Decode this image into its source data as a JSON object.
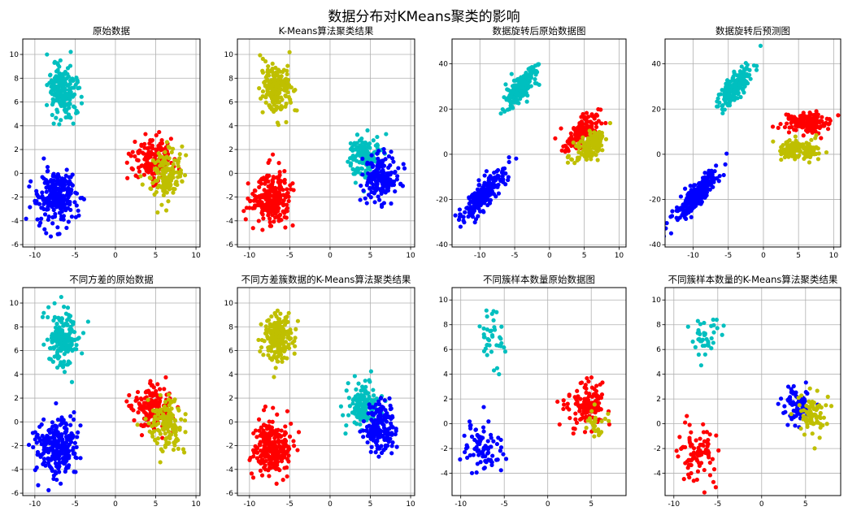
{
  "figure": {
    "suptitle": "数据分布对KMeans聚类的影响"
  },
  "colors": {
    "b": "#0000ff",
    "r": "#ff0000",
    "c": "#00bfbf",
    "y": "#bfbf00"
  },
  "chart_data": [
    {
      "type": "scatter",
      "title": "原始数据",
      "xlim": [
        -11.5,
        10.5
      ],
      "ylim": [
        -6.2,
        11.3
      ],
      "xticks": [
        -10,
        -5,
        0,
        5,
        10
      ],
      "yticks": [
        -6,
        -4,
        -2,
        0,
        2,
        4,
        6,
        8,
        10
      ],
      "grid": true,
      "clusters": [
        {
          "color": "c",
          "cx": -6.6,
          "cy": 7.0,
          "sx": 0.9,
          "sy": 1.1,
          "n": 200
        },
        {
          "color": "b",
          "cx": -7.3,
          "cy": -2.1,
          "sx": 1.2,
          "sy": 1.1,
          "n": 250
        },
        {
          "color": "r",
          "cx": 4.6,
          "cy": 1.2,
          "sx": 1.2,
          "sy": 0.9,
          "n": 160
        },
        {
          "color": "y",
          "cx": 6.2,
          "cy": -0.2,
          "sx": 1.0,
          "sy": 1.1,
          "n": 140
        }
      ]
    },
    {
      "type": "scatter",
      "title": "K-Means算法聚类结果",
      "xlim": [
        -11.5,
        10.5
      ],
      "ylim": [
        -6.2,
        11.3
      ],
      "xticks": [
        -10,
        -5,
        0,
        5,
        10
      ],
      "yticks": [
        -6,
        -4,
        -2,
        0,
        2,
        4,
        6,
        8,
        10
      ],
      "grid": true,
      "clusters": [
        {
          "color": "y",
          "cx": -6.6,
          "cy": 7.0,
          "sx": 0.9,
          "sy": 1.1,
          "n": 200
        },
        {
          "color": "r",
          "cx": -7.3,
          "cy": -2.1,
          "sx": 1.2,
          "sy": 1.1,
          "n": 250
        },
        {
          "color": "c",
          "cx": 4.2,
          "cy": 1.4,
          "sx": 1.0,
          "sy": 0.9,
          "n": 160
        },
        {
          "color": "b",
          "cx": 6.3,
          "cy": -0.4,
          "sx": 1.0,
          "sy": 1.0,
          "n": 160
        }
      ]
    },
    {
      "type": "scatter",
      "title": "数据旋转后原始数据图",
      "xlim": [
        -14,
        11
      ],
      "ylim": [
        -41,
        51
      ],
      "xticks": [
        -10,
        -5,
        0,
        5,
        10
      ],
      "yticks": [
        -40,
        -20,
        0,
        20,
        40
      ],
      "grid": true,
      "clusters": [
        {
          "color": "c",
          "cx": -4.0,
          "cy": 30,
          "sx": 1.2,
          "sy": 2.8,
          "slope": 3.0,
          "n": 200
        },
        {
          "color": "b",
          "cx": -9.5,
          "cy": -18,
          "sx": 1.5,
          "sy": 2.8,
          "slope": 3.0,
          "n": 250
        },
        {
          "color": "r",
          "cx": 4.8,
          "cy": 10,
          "sx": 1.3,
          "sy": 3.0,
          "slope": 1.8,
          "n": 160
        },
        {
          "color": "y",
          "cx": 6.0,
          "cy": 4,
          "sx": 1.1,
          "sy": 3.0,
          "slope": 1.8,
          "n": 140
        }
      ]
    },
    {
      "type": "scatter",
      "title": "数据旋转后预测图",
      "xlim": [
        -14,
        11
      ],
      "ylim": [
        -41,
        51
      ],
      "xticks": [
        -10,
        -5,
        0,
        5,
        10
      ],
      "yticks": [
        -40,
        -20,
        0,
        20,
        40
      ],
      "grid": true,
      "clusters": [
        {
          "color": "c",
          "cx": -4.0,
          "cy": 30,
          "sx": 1.2,
          "sy": 2.8,
          "slope": 3.0,
          "n": 200
        },
        {
          "color": "b",
          "cx": -9.5,
          "cy": -18,
          "sx": 1.5,
          "sy": 2.8,
          "slope": 3.0,
          "n": 250
        },
        {
          "color": "r",
          "cx": 6.2,
          "cy": 14,
          "sx": 1.5,
          "sy": 2.3,
          "n": 160
        },
        {
          "color": "y",
          "cx": 5.0,
          "cy": 2,
          "sx": 1.3,
          "sy": 2.3,
          "n": 140
        }
      ]
    },
    {
      "type": "scatter",
      "title": "不同方差的原始数据",
      "xlim": [
        -11.5,
        10.5
      ],
      "ylim": [
        -6.2,
        11.3
      ],
      "xticks": [
        -10,
        -5,
        0,
        5,
        10
      ],
      "yticks": [
        -6,
        -4,
        -2,
        0,
        2,
        4,
        6,
        8,
        10
      ],
      "grid": true,
      "clusters": [
        {
          "color": "c",
          "cx": -6.6,
          "cy": 7.0,
          "sx": 0.9,
          "sy": 1.1,
          "n": 200
        },
        {
          "color": "b",
          "cx": -7.3,
          "cy": -2.1,
          "sx": 1.2,
          "sy": 1.1,
          "n": 250
        },
        {
          "color": "r",
          "cx": 4.6,
          "cy": 1.2,
          "sx": 1.2,
          "sy": 0.9,
          "n": 160
        },
        {
          "color": "y",
          "cx": 6.2,
          "cy": -0.2,
          "sx": 1.0,
          "sy": 1.1,
          "n": 140
        }
      ]
    },
    {
      "type": "scatter",
      "title": "不同方差簇数据的K-Means算法聚类结果",
      "xlim": [
        -11.5,
        10.5
      ],
      "ylim": [
        -6.2,
        11.3
      ],
      "xticks": [
        -10,
        -5,
        0,
        5,
        10
      ],
      "yticks": [
        -6,
        -4,
        -2,
        0,
        2,
        4,
        6,
        8,
        10
      ],
      "grid": true,
      "clusters": [
        {
          "color": "y",
          "cx": -6.6,
          "cy": 7.0,
          "sx": 0.9,
          "sy": 1.1,
          "n": 200
        },
        {
          "color": "r",
          "cx": -7.3,
          "cy": -2.1,
          "sx": 1.2,
          "sy": 1.1,
          "n": 250
        },
        {
          "color": "c",
          "cx": 4.2,
          "cy": 1.4,
          "sx": 1.0,
          "sy": 0.9,
          "n": 160
        },
        {
          "color": "b",
          "cx": 6.3,
          "cy": -0.4,
          "sx": 1.0,
          "sy": 1.0,
          "n": 160
        }
      ]
    },
    {
      "type": "scatter",
      "title": "不同簇样本数量原始数据图",
      "xlim": [
        -11,
        9
      ],
      "ylim": [
        -5.8,
        11
      ],
      "xticks": [
        -10,
        -5,
        0,
        5
      ],
      "yticks": [
        -4,
        -2,
        0,
        2,
        4,
        6,
        8,
        10
      ],
      "grid": true,
      "clusters": [
        {
          "color": "c",
          "cx": -6.5,
          "cy": 7.0,
          "sx": 0.9,
          "sy": 1.1,
          "n": 40
        },
        {
          "color": "b",
          "cx": -7.3,
          "cy": -2.1,
          "sx": 1.1,
          "sy": 1.1,
          "n": 90
        },
        {
          "color": "r",
          "cx": 4.5,
          "cy": 1.4,
          "sx": 1.1,
          "sy": 0.9,
          "n": 130
        },
        {
          "color": "y",
          "cx": 5.5,
          "cy": 0.0,
          "sx": 0.6,
          "sy": 0.6,
          "n": 25
        }
      ]
    },
    {
      "type": "scatter",
      "title": "不同簇样本数量的K-Means算法聚类结果",
      "xlim": [
        -11,
        9
      ],
      "ylim": [
        -5.8,
        11
      ],
      "xticks": [
        -10,
        -5,
        0,
        5
      ],
      "yticks": [
        -4,
        -2,
        0,
        2,
        4,
        6,
        8,
        10
      ],
      "grid": true,
      "clusters": [
        {
          "color": "c",
          "cx": -6.5,
          "cy": 7.0,
          "sx": 0.9,
          "sy": 1.1,
          "n": 40
        },
        {
          "color": "r",
          "cx": -7.3,
          "cy": -2.1,
          "sx": 1.1,
          "sy": 1.1,
          "n": 90
        },
        {
          "color": "b",
          "cx": 3.9,
          "cy": 1.6,
          "sx": 0.8,
          "sy": 0.8,
          "n": 80
        },
        {
          "color": "y",
          "cx": 5.8,
          "cy": 0.6,
          "sx": 0.8,
          "sy": 0.9,
          "n": 80
        }
      ]
    }
  ]
}
